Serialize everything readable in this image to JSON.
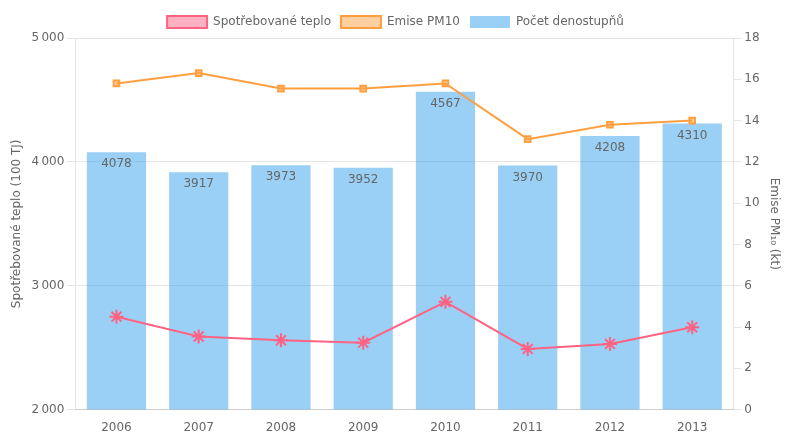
{
  "chart_data": {
    "type": "bar",
    "categories": [
      2006,
      2007,
      2008,
      2009,
      2010,
      2011,
      2012,
      2013
    ],
    "ylabel": "Spotřebované teplo (100 TJ)",
    "y2label": "Emise PM₁₀ (kt)",
    "ylim": [
      2000,
      5000
    ],
    "yticks": [
      {
        "value": 2000,
        "label": "2 000"
      },
      {
        "value": 3000,
        "label": "3 000"
      },
      {
        "value": 4000,
        "label": "4 000"
      },
      {
        "value": 5000,
        "label": "5 000"
      }
    ],
    "y2lim": [
      0,
      18
    ],
    "y2ticks": [
      0,
      2,
      4,
      6,
      8,
      10,
      12,
      14,
      16,
      18
    ],
    "grid": true,
    "legend": "top",
    "series": [
      {
        "name": "Počet denostupňů",
        "type": "bar",
        "values": [
          4078,
          3917,
          3973,
          3952,
          4567,
          3970,
          4208,
          4310
        ],
        "data_labels": true
      },
      {
        "name": "Spotřebované teplo",
        "type": "line",
        "marker": "star",
        "values": [
          2750,
          2590,
          2560,
          2540,
          2870,
          2490,
          2530,
          2665
        ]
      },
      {
        "name": "Emise PM10",
        "type": "line",
        "marker": "square",
        "axis": "y2",
        "values": [
          15.8,
          16.3,
          15.55,
          15.55,
          15.8,
          13.1,
          13.8,
          14.0
        ]
      }
    ]
  }
}
